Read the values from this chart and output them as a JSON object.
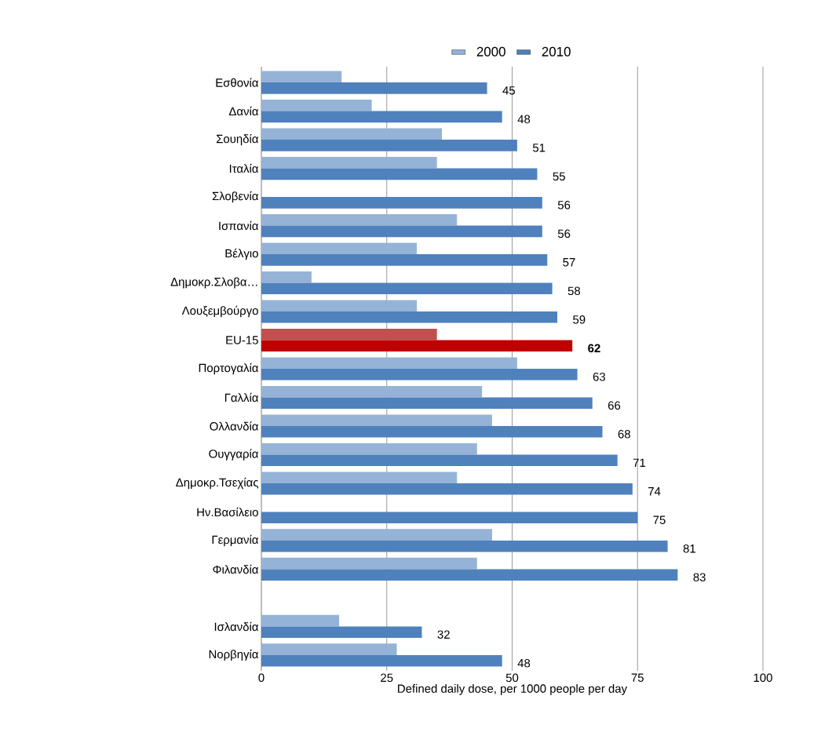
{
  "chart_data": {
    "type": "bar",
    "orientation": "horizontal",
    "xlabel": "Defined daily dose, per 1000 people  per day",
    "categories": [
      "Εσθονία",
      "Δανία",
      "Σουηδία",
      "Ιταλία",
      "Σλοβενία",
      "Ισπανία",
      "Βέλγιο",
      "Δημοκρ.Σλοβα…",
      "Λουξεμβούργο",
      "EU-15",
      "Πορτογαλία",
      "Γαλλία",
      "Ολλανδία",
      "Ουγγαρία",
      "Δημοκρ.Τσεχίας",
      "Ην.Βασίλειο",
      "Γερμανία",
      "Φιλανδία",
      null,
      "Ισλανδία",
      "Νορβηγία"
    ],
    "series": [
      {
        "name": "2000",
        "color": "#95b3d7",
        "colors": [
          "#95b3d7",
          "#95b3d7",
          "#95b3d7",
          "#95b3d7",
          "#95b3d7",
          "#95b3d7",
          "#95b3d7",
          "#95b3d7",
          "#95b3d7",
          "#c0504d",
          "#95b3d7",
          "#95b3d7",
          "#95b3d7",
          "#95b3d7",
          "#95b3d7",
          "#95b3d7",
          "#95b3d7",
          "#95b3d7",
          "#95b3d7",
          "#95b3d7",
          "#95b3d7"
        ],
        "values": [
          16,
          22,
          36,
          35,
          null,
          39,
          31,
          10,
          31,
          35,
          51,
          44,
          46,
          43,
          39,
          null,
          46,
          43,
          null,
          15.5,
          27
        ]
      },
      {
        "name": "2010",
        "color": "#4f81bd",
        "colors": [
          "#4f81bd",
          "#4f81bd",
          "#4f81bd",
          "#4f81bd",
          "#4f81bd",
          "#4f81bd",
          "#4f81bd",
          "#4f81bd",
          "#4f81bd",
          "#c00000",
          "#4f81bd",
          "#4f81bd",
          "#4f81bd",
          "#4f81bd",
          "#4f81bd",
          "#4f81bd",
          "#4f81bd",
          "#4f81bd",
          "#4f81bd",
          "#4f81bd",
          "#4f81bd"
        ],
        "values": [
          45,
          48,
          51,
          55,
          56,
          56,
          57,
          58,
          59,
          62,
          63,
          66,
          68,
          71,
          74,
          75,
          81,
          83,
          null,
          32,
          48
        ],
        "value_labels": [
          "45",
          "48",
          "51",
          "55",
          "56",
          "56",
          "57",
          "58",
          "59",
          "**62**",
          "63",
          "66",
          "68",
          "71",
          "74",
          "75",
          "81",
          "83",
          null,
          "32",
          "48"
        ]
      }
    ],
    "xlim": [
      0,
      100
    ],
    "xticks": [
      0,
      25,
      50,
      75,
      100
    ],
    "grid": "x",
    "legend": "top"
  }
}
